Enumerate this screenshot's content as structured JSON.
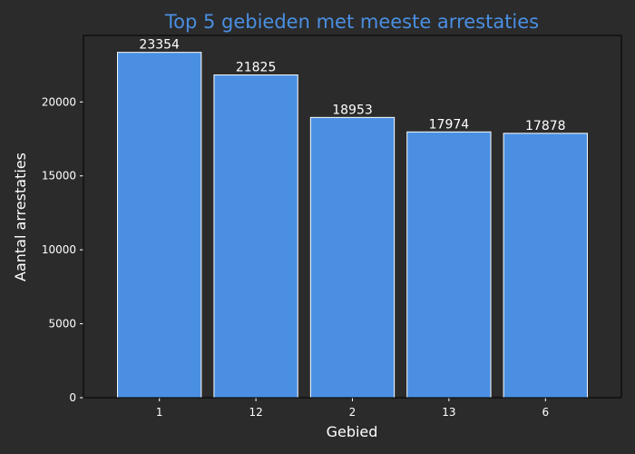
{
  "chart_data": {
    "type": "bar",
    "title": "Top 5 gebieden met meeste arrestaties",
    "xlabel": "Gebied",
    "ylabel": "Aantal arrestaties",
    "categories": [
      "1",
      "12",
      "2",
      "13",
      "6"
    ],
    "values": [
      23354,
      21825,
      18953,
      17974,
      17878
    ],
    "ylim": [
      0,
      24500
    ],
    "yticks": [
      0,
      5000,
      10000,
      15000,
      20000
    ],
    "grid": false,
    "legend": "none",
    "colors": {
      "bar": "#4a8fe2",
      "bar_edge": "#ffffff",
      "title": "#4a8fe2",
      "background": "#2b2b2b",
      "axes": "#000000",
      "text": "#ffffff"
    }
  }
}
